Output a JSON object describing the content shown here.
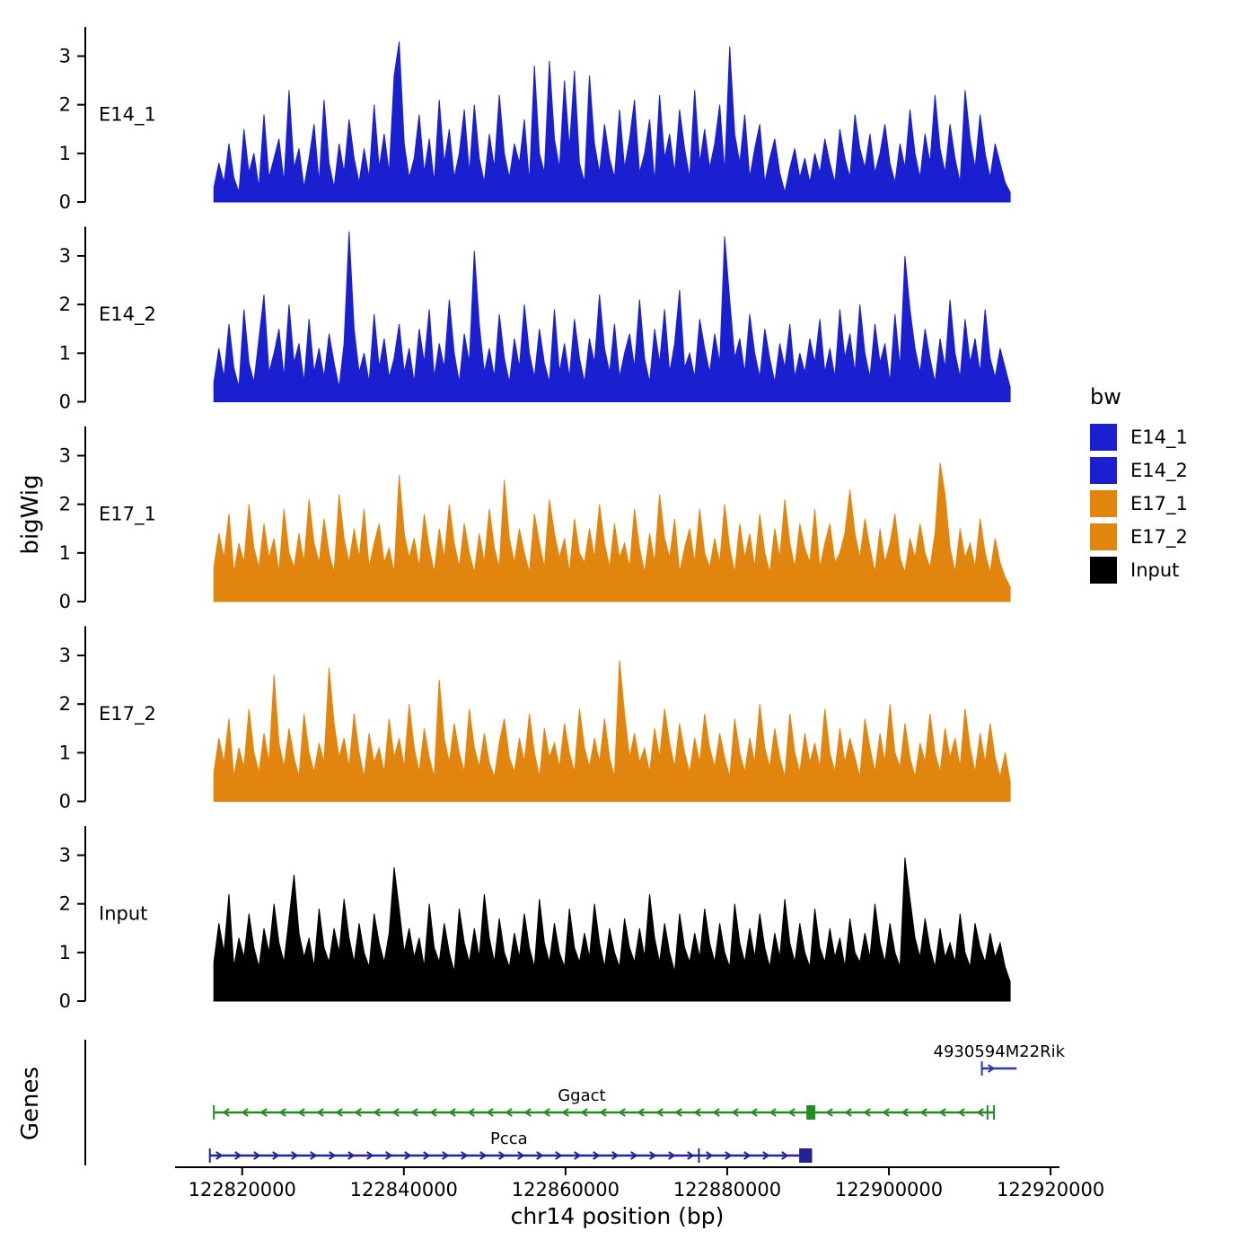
{
  "figure": {
    "y_axis_title": "bigWig",
    "genes_axis_title": "Genes",
    "x_axis_title": "chr14 position (bp)"
  },
  "legend": {
    "title": "bw",
    "entries": [
      {
        "label": "E14_1",
        "color": "#1A1FD0"
      },
      {
        "label": "E14_2",
        "color": "#1A1FD0"
      },
      {
        "label": "E17_1",
        "color": "#E2850F"
      },
      {
        "label": "E17_2",
        "color": "#E2850F"
      },
      {
        "label": "Input",
        "color": "#000000"
      }
    ]
  },
  "chart_data": {
    "type": "area",
    "x_axis": {
      "label": "chr14 position (bp)",
      "ticks": [
        122820000,
        122840000,
        122860000,
        122880000,
        122900000,
        122920000
      ],
      "range_bp": [
        122811700,
        122921100
      ]
    },
    "y_axis": {
      "label": "bigWig",
      "ticks": [
        0,
        1,
        2,
        3
      ],
      "ylim": [
        0,
        3.6
      ]
    },
    "data_region_bp": [
      122816500,
      122915000
    ],
    "tracks": [
      {
        "name": "E14_1",
        "color": "#1A1FD0",
        "values": [
          0.3,
          0.8,
          0.4,
          1.2,
          0.5,
          0.2,
          1.5,
          0.6,
          1.0,
          0.3,
          1.8,
          0.5,
          0.9,
          1.3,
          0.4,
          2.3,
          0.7,
          1.1,
          0.3,
          0.9,
          1.6,
          0.4,
          2.1,
          0.8,
          0.3,
          1.2,
          0.6,
          1.7,
          0.9,
          0.4,
          1.1,
          0.5,
          2.0,
          0.7,
          1.4,
          0.6,
          2.6,
          3.3,
          1.2,
          0.5,
          0.9,
          1.8,
          0.6,
          1.3,
          0.4,
          2.1,
          0.8,
          1.5,
          0.5,
          1.0,
          1.9,
          0.6,
          2.0,
          0.9,
          0.4,
          1.4,
          0.7,
          2.2,
          1.0,
          0.5,
          1.2,
          0.8,
          1.7,
          0.4,
          2.8,
          1.0,
          0.6,
          2.9,
          1.3,
          0.7,
          2.5,
          1.1,
          2.7,
          0.8,
          0.4,
          2.6,
          1.2,
          0.6,
          1.6,
          0.9,
          0.5,
          1.9,
          0.7,
          1.3,
          2.1,
          0.6,
          1.0,
          1.7,
          0.4,
          2.2,
          0.9,
          1.4,
          0.6,
          1.9,
          1.1,
          0.5,
          2.3,
          0.8,
          1.5,
          0.7,
          1.2,
          2.0,
          0.6,
          3.2,
          1.4,
          0.8,
          1.8,
          0.5,
          1.1,
          1.6,
          0.4,
          0.9,
          1.3,
          0.6,
          0.2,
          0.7,
          1.1,
          0.5,
          0.9,
          0.4,
          1.0,
          0.6,
          1.3,
          0.8,
          0.4,
          1.5,
          0.9,
          0.5,
          1.8,
          1.1,
          0.7,
          1.4,
          0.6,
          1.0,
          1.6,
          0.8,
          0.4,
          1.2,
          0.7,
          1.9,
          1.0,
          0.5,
          1.4,
          0.8,
          2.2,
          1.1,
          0.6,
          1.6,
          0.9,
          0.4,
          2.3,
          1.3,
          0.7,
          1.8,
          1.0,
          0.5,
          1.2,
          0.8,
          0.4,
          0.2
        ]
      },
      {
        "name": "E14_2",
        "color": "#1A1FD0",
        "values": [
          0.4,
          1.1,
          0.5,
          1.6,
          0.7,
          0.3,
          1.9,
          0.8,
          0.4,
          1.3,
          2.2,
          0.6,
          1.0,
          1.5,
          0.5,
          2.0,
          0.8,
          1.2,
          0.4,
          1.7,
          0.6,
          1.1,
          0.5,
          1.4,
          0.8,
          0.3,
          1.2,
          3.5,
          1.5,
          0.6,
          1.0,
          0.4,
          1.8,
          0.7,
          1.3,
          0.5,
          0.9,
          1.6,
          0.6,
          1.1,
          0.4,
          1.5,
          0.8,
          1.9,
          0.5,
          1.2,
          0.7,
          2.1,
          1.0,
          0.4,
          1.4,
          0.8,
          3.1,
          1.6,
          0.6,
          1.1,
          0.5,
          1.8,
          0.9,
          0.4,
          1.3,
          0.7,
          2.0,
          1.0,
          0.5,
          1.5,
          0.8,
          0.4,
          1.9,
          0.6,
          1.2,
          0.5,
          1.7,
          0.9,
          0.4,
          1.3,
          0.8,
          2.2,
          1.1,
          0.6,
          1.6,
          0.5,
          1.0,
          1.4,
          0.7,
          2.1,
          0.9,
          0.4,
          1.5,
          0.8,
          1.9,
          0.6,
          1.2,
          2.3,
          0.7,
          1.0,
          0.5,
          1.7,
          1.1,
          0.6,
          1.4,
          0.8,
          3.4,
          2.1,
          0.9,
          1.3,
          0.6,
          1.8,
          1.0,
          0.5,
          1.5,
          0.9,
          0.4,
          1.2,
          0.7,
          1.6,
          0.5,
          1.0,
          0.6,
          1.3,
          0.8,
          1.7,
          0.6,
          1.1,
          0.5,
          1.9,
          0.9,
          1.4,
          0.6,
          2.0,
          1.0,
          0.5,
          1.6,
          0.8,
          1.2,
          0.4,
          1.8,
          0.7,
          3.0,
          1.9,
          1.1,
          0.6,
          1.5,
          0.9,
          0.4,
          1.3,
          0.7,
          2.1,
          1.0,
          0.5,
          1.7,
          0.8,
          1.3,
          0.6,
          1.9,
          0.9,
          0.5,
          1.1,
          0.7,
          0.3
        ]
      },
      {
        "name": "E17_1",
        "color": "#E2850F",
        "values": [
          0.7,
          1.4,
          0.9,
          1.8,
          0.6,
          1.2,
          0.8,
          2.0,
          1.1,
          0.7,
          1.6,
          0.9,
          1.3,
          0.6,
          1.9,
          1.0,
          0.7,
          1.4,
          0.8,
          2.1,
          1.2,
          0.8,
          1.7,
          1.0,
          0.6,
          2.2,
          1.3,
          0.8,
          1.5,
          0.9,
          1.9,
          0.7,
          1.2,
          1.6,
          0.8,
          1.1,
          0.6,
          2.6,
          1.4,
          0.9,
          1.3,
          0.7,
          1.8,
          1.1,
          0.6,
          1.5,
          0.9,
          2.0,
          1.2,
          0.7,
          1.6,
          1.0,
          0.6,
          1.4,
          0.8,
          1.9,
          1.1,
          0.7,
          2.5,
          1.3,
          0.8,
          1.5,
          1.0,
          0.6,
          1.8,
          1.2,
          0.7,
          2.1,
          1.4,
          0.9,
          1.3,
          0.6,
          1.7,
          1.0,
          0.8,
          1.5,
          0.9,
          2.0,
          1.2,
          0.7,
          1.6,
          0.9,
          1.2,
          0.7,
          1.9,
          1.1,
          0.6,
          1.4,
          0.8,
          2.2,
          1.3,
          0.9,
          1.7,
          0.6,
          1.1,
          1.5,
          0.8,
          1.9,
          1.0,
          0.7,
          1.3,
          0.8,
          2.0,
          1.1,
          0.6,
          1.6,
          0.9,
          1.4,
          0.7,
          1.8,
          1.0,
          0.6,
          1.5,
          0.9,
          2.1,
          1.2,
          0.7,
          1.6,
          1.1,
          0.8,
          1.9,
          0.7,
          1.2,
          1.6,
          0.8,
          1.0,
          1.4,
          2.3,
          1.4,
          0.9,
          1.7,
          1.1,
          0.6,
          1.5,
          0.8,
          1.2,
          1.8,
          0.9,
          0.6,
          1.3,
          0.9,
          1.6,
          1.0,
          0.7,
          1.4,
          2.85,
          2.2,
          1.1,
          0.6,
          1.5,
          0.9,
          1.2,
          0.7,
          1.7,
          1.0,
          0.6,
          1.3,
          0.8,
          0.5,
          0.3
        ]
      },
      {
        "name": "E17_2",
        "color": "#E2850F",
        "values": [
          0.6,
          1.3,
          0.8,
          1.7,
          0.5,
          1.1,
          0.7,
          1.9,
          1.0,
          0.6,
          1.4,
          0.8,
          2.6,
          1.2,
          0.7,
          1.5,
          0.9,
          0.5,
          1.8,
          1.0,
          0.6,
          1.2,
          0.8,
          2.75,
          1.6,
          0.9,
          1.3,
          0.7,
          1.8,
          1.0,
          0.5,
          1.4,
          0.8,
          1.1,
          0.6,
          1.7,
          0.9,
          1.3,
          0.7,
          2.0,
          1.1,
          0.6,
          1.5,
          0.9,
          0.5,
          2.5,
          1.3,
          0.8,
          1.6,
          1.0,
          0.6,
          1.9,
          1.1,
          0.7,
          1.4,
          0.8,
          0.5,
          1.2,
          1.7,
          0.9,
          0.6,
          1.3,
          0.8,
          1.8,
          1.0,
          0.5,
          1.5,
          0.9,
          1.2,
          0.7,
          1.6,
          1.0,
          0.6,
          1.9,
          1.1,
          0.7,
          1.3,
          0.8,
          1.7,
          0.9,
          0.5,
          2.9,
          1.8,
          0.9,
          1.4,
          0.8,
          1.1,
          0.6,
          1.5,
          0.9,
          1.9,
          1.2,
          0.7,
          1.6,
          1.0,
          0.6,
          1.3,
          0.8,
          1.8,
          1.1,
          0.7,
          1.4,
          0.9,
          0.5,
          1.7,
          1.0,
          0.6,
          1.3,
          0.8,
          2.0,
          1.1,
          0.7,
          1.5,
          0.9,
          0.5,
          1.8,
          1.0,
          0.6,
          1.4,
          0.8,
          1.2,
          0.7,
          1.9,
          1.0,
          0.6,
          1.5,
          0.8,
          1.3,
          0.9,
          0.5,
          1.7,
          1.1,
          0.6,
          1.4,
          0.8,
          2.0,
          1.0,
          0.7,
          1.6,
          0.9,
          0.5,
          1.2,
          0.8,
          1.8,
          1.0,
          0.6,
          1.5,
          0.9,
          1.3,
          0.7,
          1.9,
          1.1,
          0.6,
          1.4,
          0.8,
          1.6,
          0.9,
          0.5,
          1.0,
          0.4
        ]
      },
      {
        "name": "Input",
        "color": "#000000",
        "values": [
          0.8,
          1.6,
          1.0,
          2.2,
          0.7,
          1.3,
          0.9,
          1.8,
          1.1,
          0.7,
          1.5,
          1.0,
          2.0,
          1.2,
          0.8,
          1.7,
          2.6,
          1.4,
          0.9,
          1.3,
          0.7,
          1.9,
          1.1,
          0.8,
          1.5,
          1.0,
          2.1,
          1.3,
          0.8,
          1.6,
          1.0,
          0.7,
          1.8,
          1.2,
          0.8,
          1.4,
          2.75,
          1.9,
          1.0,
          1.5,
          0.9,
          1.3,
          0.7,
          2.0,
          1.1,
          0.8,
          1.6,
          1.0,
          0.6,
          1.9,
          1.2,
          0.8,
          1.5,
          0.9,
          2.2,
          1.3,
          0.8,
          1.7,
          1.0,
          0.7,
          1.4,
          0.9,
          1.8,
          1.1,
          0.7,
          2.1,
          1.2,
          0.8,
          1.6,
          1.0,
          0.7,
          1.9,
          1.1,
          0.8,
          1.4,
          0.9,
          2.0,
          1.2,
          0.7,
          1.5,
          1.0,
          0.7,
          1.7,
          1.1,
          0.8,
          1.5,
          0.9,
          2.2,
          1.3,
          0.8,
          1.6,
          1.0,
          0.6,
          1.8,
          1.1,
          0.8,
          1.4,
          0.9,
          1.9,
          1.2,
          0.8,
          1.6,
          1.0,
          0.7,
          2.0,
          1.2,
          0.8,
          1.5,
          0.9,
          1.8,
          1.1,
          0.7,
          1.4,
          0.9,
          2.1,
          1.2,
          0.8,
          1.6,
          1.0,
          0.7,
          1.9,
          1.1,
          0.8,
          1.5,
          0.9,
          1.3,
          0.7,
          1.7,
          1.0,
          0.8,
          1.4,
          0.9,
          2.0,
          1.2,
          0.8,
          1.6,
          1.0,
          0.7,
          2.95,
          2.1,
          1.3,
          0.9,
          1.7,
          1.1,
          0.7,
          1.5,
          0.9,
          1.2,
          0.8,
          1.8,
          1.0,
          0.7,
          1.6,
          1.1,
          0.8,
          1.4,
          0.9,
          1.2,
          0.7,
          0.4
        ]
      }
    ],
    "genes": [
      {
        "name": "4930594M22Rik",
        "strand": "+",
        "color": "#3333B2",
        "row": 0,
        "start_bp": 122911500,
        "end_bp": 122915800,
        "label_bp": 122905500,
        "label_anchor": "start",
        "exons": [],
        "marks": [
          122911500
        ]
      },
      {
        "name": "Ggact",
        "strand": "-",
        "color": "#228B22",
        "row": 1,
        "start_bp": 122816500,
        "end_bp": 122913000,
        "label_bp": 122862000,
        "label_anchor": "middle",
        "exons": [
          {
            "start_bp": 122889800,
            "end_bp": 122890900
          }
        ],
        "marks": [
          122816500,
          122912200,
          122913000
        ]
      },
      {
        "name": "Pcca",
        "strand": "+",
        "color": "#232297",
        "row": 2,
        "start_bp": 122816000,
        "end_bp": 122890500,
        "label_bp": 122853000,
        "label_anchor": "middle",
        "exons": [
          {
            "start_bp": 122888900,
            "end_bp": 122890500
          }
        ],
        "marks": [
          122816000,
          122876500
        ]
      }
    ]
  }
}
